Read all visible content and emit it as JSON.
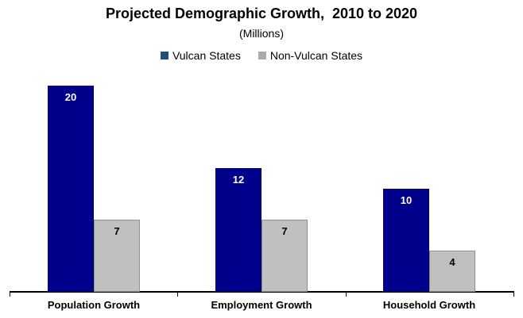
{
  "chart_data": {
    "type": "bar",
    "title": "Projected Demographic Growth,  2010 to 2020",
    "subtitle": "(Millions)",
    "unit": "Millions",
    "categories": [
      "Population Growth",
      "Employment Growth",
      "Household Growth"
    ],
    "series": [
      {
        "name": "Vulcan States",
        "values": [
          20,
          12,
          10
        ],
        "bar_color": "#00008B",
        "border_color": "#000066",
        "label_color": "#FFFFFF"
      },
      {
        "name": "Non-Vulcan States",
        "values": [
          7,
          7,
          4
        ],
        "bar_color": "#C0C0C0",
        "border_color": "#919191",
        "label_color": "#000000"
      }
    ],
    "ylim": [
      0,
      21.5
    ],
    "grid": false,
    "legend_position": "top",
    "data_labels": "inside-end",
    "axis_color": "#000000"
  },
  "legend": {
    "items": [
      {
        "label": "Vulcan States",
        "marker_color": "#1F4E79"
      },
      {
        "label": "Non-Vulcan States",
        "marker_color": "#ABABAB"
      }
    ]
  }
}
